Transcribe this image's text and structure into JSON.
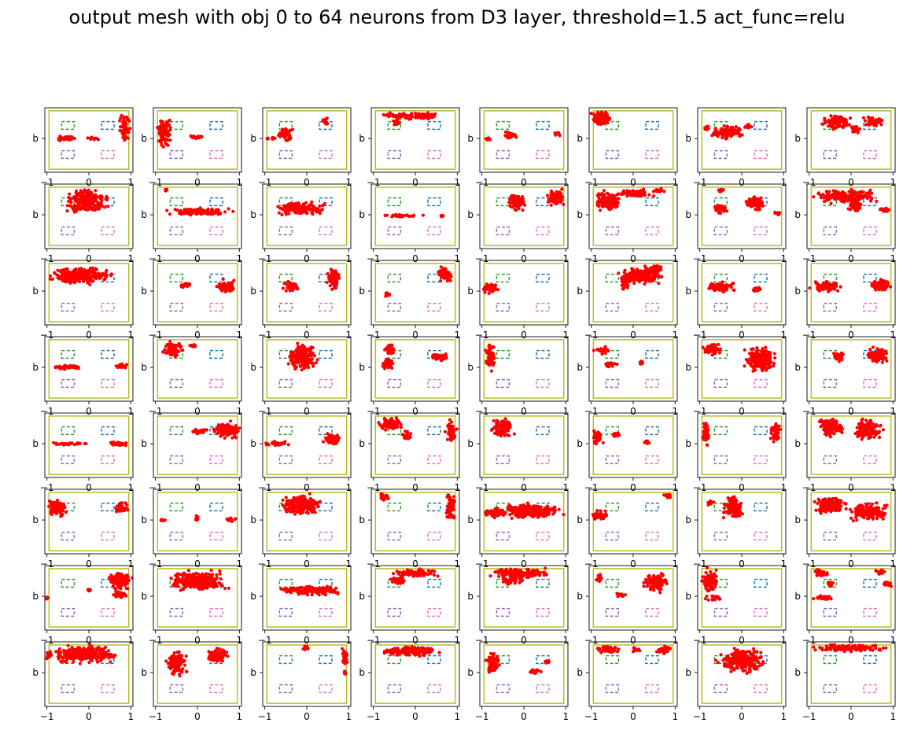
{
  "title": "output mesh with obj 0 to 64 neurons from D3 layer, threshold=1.5 act_func=relu",
  "chart_data": {
    "type": "scatter",
    "title": "output mesh with obj 0 to 64 neurons from D3 layer, threshold=1.5 act_func=relu",
    "grid": {
      "rows": 8,
      "cols": 8
    },
    "subplot_ylabel": "b",
    "subplot_xlabel": "",
    "xticks": [
      -1,
      0,
      1
    ],
    "xtick_labels": [
      "−1",
      "0",
      "1"
    ],
    "xlim": [
      -1.05,
      1.05
    ],
    "ylim": [
      -1.05,
      1.05
    ],
    "point_color": "#ff0000",
    "reference_shapes": [
      {
        "name": "boundary",
        "style": "solid",
        "color": "#bcbd22",
        "x": [
          -0.95,
          0.95
        ],
        "y": [
          -0.95,
          0.95
        ]
      },
      {
        "name": "top-left box",
        "style": "dashed",
        "color": "#2ca02c",
        "x": [
          -0.65,
          -0.35
        ],
        "y": [
          0.35,
          0.6
        ]
      },
      {
        "name": "top-right box",
        "style": "dashed",
        "color": "#1f77b4",
        "x": [
          0.3,
          0.6
        ],
        "y": [
          0.35,
          0.6
        ]
      },
      {
        "name": "bottom-left box",
        "style": "dashed",
        "color": "#9467bd",
        "x": [
          -0.65,
          -0.35
        ],
        "y": [
          -0.6,
          -0.35
        ]
      },
      {
        "name": "bottom-right box",
        "style": "dashed",
        "color": "#e377c2",
        "x": [
          0.3,
          0.6
        ],
        "y": [
          -0.6,
          -0.35
        ]
      }
    ],
    "subplots": [
      {
        "neuron": 0,
        "clusters": [
          [
            -0.55,
            0.05,
            0.45,
            0.1
          ],
          [
            0.1,
            0.05,
            0.2,
            0.05
          ],
          [
            0.85,
            0.4,
            0.15,
            0.5
          ]
        ]
      },
      {
        "neuron": 1,
        "clusters": [
          [
            -0.8,
            0.3,
            0.2,
            0.55
          ],
          [
            -0.05,
            0.1,
            0.25,
            0.08
          ]
        ]
      },
      {
        "neuron": 2,
        "clusters": [
          [
            -0.5,
            0.2,
            0.2,
            0.3
          ],
          [
            -0.85,
            0.05,
            0.15,
            0.05
          ],
          [
            0.45,
            0.6,
            0.1,
            0.15
          ]
        ]
      },
      {
        "neuron": 3,
        "clusters": [
          [
            -0.35,
            0.78,
            0.5,
            0.12
          ],
          [
            0.2,
            0.78,
            0.4,
            0.15
          ],
          [
            -0.45,
            0.55,
            0.15,
            0.1
          ]
        ]
      },
      {
        "neuron": 4,
        "clusters": [
          [
            -0.35,
            0.15,
            0.2,
            0.15
          ],
          [
            -0.85,
            0.05,
            0.1,
            0.08
          ],
          [
            0.8,
            0.2,
            0.1,
            0.1
          ]
        ]
      },
      {
        "neuron": 5,
        "clusters": [
          [
            -0.75,
            0.7,
            0.3,
            0.3
          ]
        ]
      },
      {
        "neuron": 6,
        "clusters": [
          [
            -0.35,
            0.25,
            0.45,
            0.25
          ],
          [
            -0.85,
            0.4,
            0.1,
            0.1
          ],
          [
            0.15,
            0.45,
            0.1,
            0.1
          ]
        ]
      },
      {
        "neuron": 7,
        "clusters": [
          [
            -0.35,
            0.6,
            0.4,
            0.3
          ],
          [
            0.1,
            0.35,
            0.15,
            0.2
          ],
          [
            0.55,
            0.6,
            0.3,
            0.2
          ]
        ]
      },
      {
        "neuron": 8,
        "clusters": [
          [
            -0.05,
            0.5,
            0.6,
            0.45
          ]
        ]
      },
      {
        "neuron": 9,
        "clusters": [
          [
            0.05,
            0.15,
            0.95,
            0.15
          ],
          [
            -0.75,
            0.85,
            0.05,
            0.05
          ]
        ]
      },
      {
        "neuron": 10,
        "clusters": [
          [
            -0.15,
            0.25,
            0.7,
            0.25
          ]
        ]
      },
      {
        "neuron": 11,
        "clusters": [
          [
            -0.35,
            0.02,
            0.65,
            0.05
          ],
          [
            0.65,
            0.0,
            0.05,
            0.05
          ]
        ]
      },
      {
        "neuron": 12,
        "clusters": [
          [
            -0.15,
            0.45,
            0.25,
            0.35
          ],
          [
            0.75,
            0.6,
            0.25,
            0.35
          ]
        ]
      },
      {
        "neuron": 13,
        "clusters": [
          [
            -0.6,
            0.5,
            0.4,
            0.4
          ],
          [
            0.05,
            0.75,
            0.5,
            0.15
          ],
          [
            0.6,
            0.85,
            0.2,
            0.1
          ]
        ]
      },
      {
        "neuron": 14,
        "clusters": [
          [
            -0.5,
            0.25,
            0.2,
            0.2
          ],
          [
            0.3,
            0.45,
            0.3,
            0.3
          ],
          [
            -0.5,
            0.85,
            0.15,
            0.08
          ],
          [
            0.85,
            0.1,
            0.1,
            0.1
          ]
        ]
      },
      {
        "neuron": 15,
        "clusters": [
          [
            -0.15,
            0.65,
            0.85,
            0.25
          ],
          [
            0.1,
            0.35,
            0.2,
            0.25
          ],
          [
            0.8,
            0.2,
            0.15,
            0.1
          ]
        ]
      },
      {
        "neuron": 16,
        "clusters": [
          [
            -0.2,
            0.55,
            0.85,
            0.35
          ]
        ]
      },
      {
        "neuron": 17,
        "clusters": [
          [
            0.7,
            0.2,
            0.3,
            0.25
          ],
          [
            -0.3,
            0.25,
            0.2,
            0.1
          ]
        ]
      },
      {
        "neuron": 18,
        "clusters": [
          [
            -0.35,
            0.2,
            0.25,
            0.2
          ],
          [
            0.65,
            0.45,
            0.2,
            0.45
          ]
        ]
      },
      {
        "neuron": 19,
        "clusters": [
          [
            0.7,
            0.6,
            0.2,
            0.3
          ],
          [
            -0.65,
            -0.05,
            0.1,
            0.1
          ]
        ]
      },
      {
        "neuron": 20,
        "clusters": [
          [
            -0.8,
            0.15,
            0.25,
            0.2
          ]
        ]
      },
      {
        "neuron": 21,
        "clusters": [
          [
            0.2,
            0.55,
            0.6,
            0.35
          ],
          [
            -0.2,
            0.35,
            0.15,
            0.3
          ],
          [
            0.55,
            0.75,
            0.3,
            0.15
          ]
        ]
      },
      {
        "neuron": 22,
        "clusters": [
          [
            -0.55,
            0.2,
            0.45,
            0.2
          ],
          [
            0.35,
            0.1,
            0.15,
            0.1
          ]
        ]
      },
      {
        "neuron": 23,
        "clusters": [
          [
            -0.6,
            0.2,
            0.45,
            0.2
          ],
          [
            0.7,
            0.25,
            0.3,
            0.25
          ]
        ]
      },
      {
        "neuron": 24,
        "clusters": [
          [
            -0.5,
            0.05,
            0.5,
            0.1
          ],
          [
            0.8,
            0.1,
            0.2,
            0.1
          ]
        ]
      },
      {
        "neuron": 25,
        "clusters": [
          [
            -0.6,
            0.65,
            0.3,
            0.3
          ],
          [
            -0.1,
            0.75,
            0.1,
            0.05
          ]
        ]
      },
      {
        "neuron": 26,
        "clusters": [
          [
            -0.1,
            0.4,
            0.45,
            0.5
          ]
        ]
      },
      {
        "neuron": 27,
        "clusters": [
          [
            -0.65,
            0.15,
            0.2,
            0.25
          ],
          [
            -0.6,
            0.65,
            0.15,
            0.2
          ],
          [
            0.55,
            0.4,
            0.25,
            0.15
          ]
        ]
      },
      {
        "neuron": 28,
        "clusters": [
          [
            -0.8,
            0.4,
            0.15,
            0.5
          ]
        ]
      },
      {
        "neuron": 29,
        "clusters": [
          [
            -0.75,
            0.6,
            0.2,
            0.15
          ],
          [
            -0.55,
            0.15,
            0.2,
            0.1
          ],
          [
            0.2,
            0.2,
            0.05,
            0.1
          ]
        ]
      },
      {
        "neuron": 30,
        "clusters": [
          [
            -0.7,
            0.65,
            0.25,
            0.25
          ],
          [
            0.45,
            0.3,
            0.45,
            0.5
          ]
        ]
      },
      {
        "neuron": 31,
        "clusters": [
          [
            -0.3,
            0.4,
            0.2,
            0.2
          ],
          [
            0.65,
            0.45,
            0.3,
            0.35
          ]
        ]
      },
      {
        "neuron": 32,
        "clusters": [
          [
            -0.5,
            0.05,
            0.6,
            0.05
          ],
          [
            0.7,
            0.05,
            0.3,
            0.1
          ]
        ]
      },
      {
        "neuron": 33,
        "clusters": [
          [
            0.7,
            0.5,
            0.4,
            0.35
          ],
          [
            0.05,
            0.45,
            0.35,
            0.1
          ]
        ]
      },
      {
        "neuron": 34,
        "clusters": [
          [
            -0.7,
            0.05,
            0.35,
            0.1
          ],
          [
            0.65,
            0.2,
            0.3,
            0.2
          ]
        ]
      },
      {
        "neuron": 35,
        "clusters": [
          [
            -0.6,
            0.7,
            0.35,
            0.25
          ],
          [
            0.85,
            0.4,
            0.15,
            0.5
          ],
          [
            -0.2,
            0.3,
            0.15,
            0.2
          ]
        ]
      },
      {
        "neuron": 36,
        "clusters": [
          [
            -0.5,
            0.55,
            0.3,
            0.4
          ]
        ]
      },
      {
        "neuron": 37,
        "clusters": [
          [
            -0.85,
            0.25,
            0.15,
            0.3
          ],
          [
            -0.4,
            0.35,
            0.2,
            0.1
          ],
          [
            0.3,
            0.1,
            0.1,
            0.1
          ]
        ]
      },
      {
        "neuron": 38,
        "clusters": [
          [
            -0.85,
            0.4,
            0.1,
            0.5
          ],
          [
            0.8,
            0.4,
            0.15,
            0.4
          ]
        ]
      },
      {
        "neuron": 39,
        "clusters": [
          [
            -0.45,
            0.6,
            0.4,
            0.35
          ],
          [
            0.4,
            0.5,
            0.4,
            0.4
          ]
        ]
      },
      {
        "neuron": 40,
        "clusters": [
          [
            -0.75,
            0.45,
            0.3,
            0.35
          ],
          [
            0.75,
            0.45,
            0.25,
            0.2
          ]
        ]
      },
      {
        "neuron": 41,
        "clusters": [
          [
            -0.85,
            0.05,
            0.15,
            0.05
          ],
          [
            0.0,
            0.1,
            0.05,
            0.1
          ],
          [
            0.8,
            0.05,
            0.15,
            0.1
          ]
        ]
      },
      {
        "neuron": 42,
        "clusters": [
          [
            -0.15,
            0.55,
            0.55,
            0.4
          ]
        ]
      },
      {
        "neuron": 43,
        "clusters": [
          [
            -0.75,
            0.8,
            0.2,
            0.15
          ],
          [
            0.85,
            0.45,
            0.15,
            0.5
          ]
        ]
      },
      {
        "neuron": 44,
        "clusters": [
          [
            0.15,
            0.35,
            0.9,
            0.3
          ],
          [
            -0.7,
            0.3,
            0.3,
            0.2
          ]
        ]
      },
      {
        "neuron": 45,
        "clusters": [
          [
            -0.8,
            0.2,
            0.25,
            0.2
          ],
          [
            0.85,
            0.85,
            0.15,
            0.1
          ]
        ]
      },
      {
        "neuron": 46,
        "clusters": [
          [
            -0.2,
            0.45,
            0.3,
            0.45
          ],
          [
            -0.75,
            0.6,
            0.1,
            0.1
          ]
        ]
      },
      {
        "neuron": 47,
        "clusters": [
          [
            -0.5,
            0.55,
            0.45,
            0.35
          ],
          [
            0.4,
            0.3,
            0.55,
            0.35
          ]
        ]
      },
      {
        "neuron": 48,
        "clusters": [
          [
            0.75,
            0.55,
            0.35,
            0.35
          ],
          [
            0.75,
            0.1,
            0.2,
            0.15
          ],
          [
            -1.0,
            0.0,
            0.05,
            0.05
          ],
          [
            0.0,
            0.25,
            0.05,
            0.05
          ]
        ]
      },
      {
        "neuron": 49,
        "clusters": [
          [
            0.0,
            0.55,
            0.85,
            0.4
          ]
        ]
      },
      {
        "neuron": 50,
        "clusters": [
          [
            0.05,
            0.25,
            0.95,
            0.2
          ]
        ]
      },
      {
        "neuron": 51,
        "clusters": [
          [
            0.0,
            0.8,
            0.6,
            0.15
          ],
          [
            -0.4,
            0.55,
            0.25,
            0.15
          ]
        ]
      },
      {
        "neuron": 52,
        "clusters": [
          [
            -0.1,
            0.8,
            0.85,
            0.2
          ],
          [
            -0.3,
            0.55,
            0.3,
            0.15
          ]
        ]
      },
      {
        "neuron": 53,
        "clusters": [
          [
            -0.8,
            0.65,
            0.1,
            0.2
          ],
          [
            -0.3,
            0.1,
            0.15,
            0.1
          ],
          [
            0.55,
            0.5,
            0.35,
            0.4
          ]
        ]
      },
      {
        "neuron": 54,
        "clusters": [
          [
            -0.75,
            0.55,
            0.25,
            0.45
          ],
          [
            -0.65,
            0.0,
            0.25,
            0.1
          ]
        ]
      },
      {
        "neuron": 55,
        "clusters": [
          [
            -0.7,
            0.8,
            0.25,
            0.15
          ],
          [
            -0.5,
            0.45,
            0.15,
            0.1
          ],
          [
            -0.6,
            0.0,
            0.35,
            0.1
          ],
          [
            0.7,
            0.85,
            0.15,
            0.1
          ],
          [
            0.85,
            0.45,
            0.15,
            0.1
          ]
        ]
      },
      {
        "neuron": 56,
        "clusters": [
          [
            -0.1,
            0.65,
            0.9,
            0.35
          ],
          [
            -0.95,
            0.6,
            0.1,
            0.15
          ]
        ]
      },
      {
        "neuron": 57,
        "clusters": [
          [
            -0.5,
            0.35,
            0.3,
            0.45
          ],
          [
            0.45,
            0.6,
            0.35,
            0.3
          ]
        ]
      },
      {
        "neuron": 58,
        "clusters": [
          [
            0.9,
            0.6,
            0.1,
            0.3
          ],
          [
            0.0,
            0.85,
            0.1,
            0.1
          ],
          [
            0.9,
            0.05,
            0.05,
            0.1
          ]
        ]
      },
      {
        "neuron": 59,
        "clusters": [
          [
            -0.1,
            0.75,
            0.85,
            0.2
          ]
        ]
      },
      {
        "neuron": 60,
        "clusters": [
          [
            -0.75,
            0.35,
            0.2,
            0.4
          ],
          [
            0.25,
            0.1,
            0.2,
            0.1
          ],
          [
            0.55,
            0.4,
            0.1,
            0.1
          ]
        ]
      },
      {
        "neuron": 61,
        "clusters": [
          [
            -0.6,
            0.8,
            0.4,
            0.15
          ],
          [
            0.75,
            0.8,
            0.25,
            0.15
          ],
          [
            0.05,
            0.8,
            0.15,
            0.1
          ]
        ]
      },
      {
        "neuron": 62,
        "clusters": [
          [
            0.0,
            0.45,
            0.65,
            0.45
          ]
        ]
      },
      {
        "neuron": 63,
        "clusters": [
          [
            0.0,
            0.85,
            1.0,
            0.15
          ]
        ]
      }
    ]
  }
}
